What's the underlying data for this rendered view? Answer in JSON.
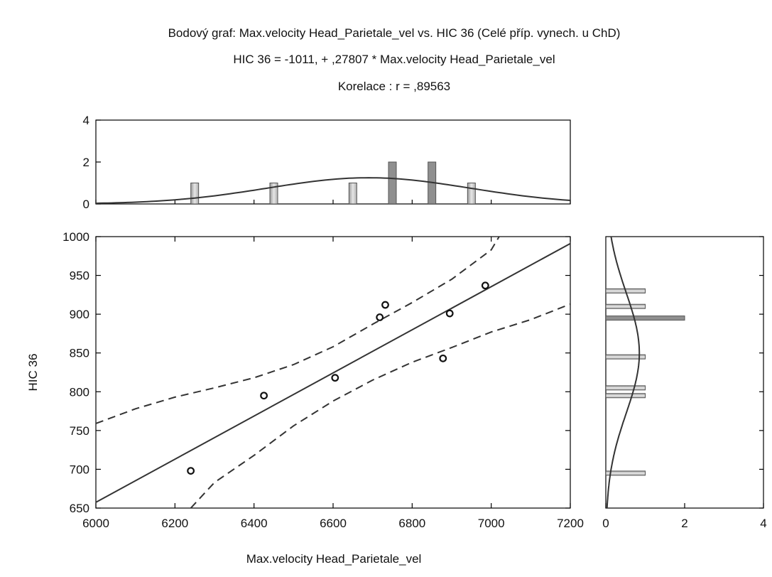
{
  "chart_data": {
    "type": "scatter",
    "title": "Bodový graf: Max.velocity Head_Parietale_vel vs. HIC 36 (Celé příp. vynech. u ChD)",
    "subtitle": "HIC 36 = -1011, + ,27807 * Max.velocity Head_Parietale_vel",
    "correlation_text": "Korelace :   r = ,89563",
    "xlabel": "Max.velocity Head_Parietale_vel",
    "ylabel": "HIC 36",
    "xlim": [
      6000,
      7200
    ],
    "ylim": [
      650,
      1000
    ],
    "x_ticks": [
      "6000",
      "6200",
      "6400",
      "6600",
      "6800",
      "7000",
      "7200"
    ],
    "y_ticks": [
      "650",
      "700",
      "750",
      "800",
      "850",
      "900",
      "950",
      "1000"
    ],
    "points": [
      {
        "x": 6240,
        "y": 698
      },
      {
        "x": 6425,
        "y": 795
      },
      {
        "x": 6605,
        "y": 818
      },
      {
        "x": 6718,
        "y": 896
      },
      {
        "x": 6732,
        "y": 912
      },
      {
        "x": 6878,
        "y": 843
      },
      {
        "x": 6895,
        "y": 901
      },
      {
        "x": 6985,
        "y": 937
      }
    ],
    "regression": {
      "intercept": -1011,
      "slope": 0.27807
    },
    "confidence_band": {
      "upper": [
        [
          6000,
          759
        ],
        [
          6100,
          778
        ],
        [
          6200,
          793
        ],
        [
          6300,
          805
        ],
        [
          6400,
          818
        ],
        [
          6500,
          835
        ],
        [
          6600,
          858
        ],
        [
          6700,
          887
        ],
        [
          6800,
          915
        ],
        [
          6900,
          945
        ],
        [
          7000,
          983
        ],
        [
          7020,
          1000
        ]
      ],
      "lower": [
        [
          6240,
          650
        ],
        [
          6300,
          683
        ],
        [
          6400,
          718
        ],
        [
          6500,
          756
        ],
        [
          6600,
          788
        ],
        [
          6700,
          815
        ],
        [
          6800,
          838
        ],
        [
          6900,
          857
        ],
        [
          7000,
          877
        ],
        [
          7100,
          893
        ],
        [
          7200,
          913
        ]
      ]
    },
    "top_histogram": {
      "ylim": [
        0,
        4
      ],
      "y_ticks": [
        "0",
        "2",
        "4"
      ],
      "bars": [
        {
          "x": 6250,
          "count": 1
        },
        {
          "x": 6450,
          "count": 1
        },
        {
          "x": 6650,
          "count": 1
        },
        {
          "x": 6750,
          "count": 2
        },
        {
          "x": 6850,
          "count": 2
        },
        {
          "x": 6950,
          "count": 1
        }
      ],
      "normal_fit": {
        "mean": 6690,
        "sd": 255,
        "peak": 1.25
      }
    },
    "right_histogram": {
      "xlim": [
        0,
        4
      ],
      "x_ticks": [
        "0",
        "2",
        "4"
      ],
      "bars": [
        {
          "y": 695,
          "count": 1
        },
        {
          "y": 795,
          "count": 1
        },
        {
          "y": 805,
          "count": 1
        },
        {
          "y": 845,
          "count": 1
        },
        {
          "y": 895,
          "count": 2
        },
        {
          "y": 910,
          "count": 1
        },
        {
          "y": 930,
          "count": 1
        }
      ],
      "normal_fit": {
        "mean": 850,
        "sd": 78,
        "peak": 0.85
      }
    }
  }
}
